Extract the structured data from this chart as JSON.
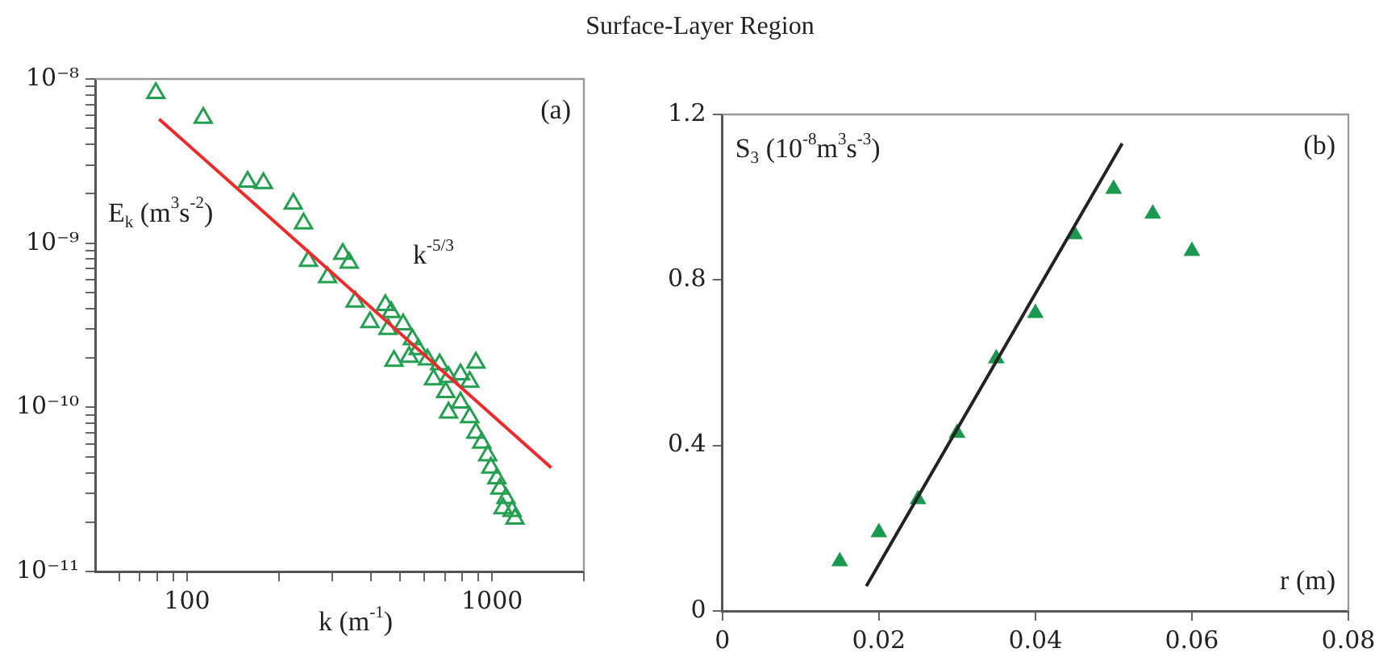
{
  "chart_data": [
    {
      "type": "scatter",
      "title": "Surface-Layer Region",
      "xlabel": "k (m$^{-1}$)",
      "ylabel": "E$_{k}$ (m$^{3}$s$^{-2}$)",
      "log": "xy",
      "marker": "triangle",
      "grid": false,
      "legend": false,
      "xlim": [
        50,
        2000
      ],
      "ylim": [
        1e-11,
        1e-08
      ],
      "xticks": [
        {
          "value": 60,
          "label": null
        },
        {
          "value": 70,
          "label": null
        },
        {
          "value": 80,
          "label": null
        },
        {
          "value": 90,
          "label": null
        },
        100,
        {
          "value": 200,
          "label": null
        },
        {
          "value": 300,
          "label": null
        },
        {
          "value": 400,
          "label": null
        },
        {
          "value": 500,
          "label": null
        },
        {
          "value": 600,
          "label": null
        },
        {
          "value": 700,
          "label": null
        },
        {
          "value": 800,
          "label": null
        },
        {
          "value": 900,
          "label": null
        },
        1000,
        {
          "value": 2000,
          "label": null
        }
      ],
      "yticks": [
        {
          "value": 1e-11,
          "label": "10⁻¹¹"
        },
        {
          "value": 2e-11,
          "label": null
        },
        {
          "value": 3e-11,
          "label": null
        },
        {
          "value": 4e-11,
          "label": null
        },
        {
          "value": 5e-11,
          "label": null
        },
        {
          "value": 6e-11,
          "label": null
        },
        {
          "value": 7e-11,
          "label": null
        },
        {
          "value": 8e-11,
          "label": null
        },
        {
          "value": 9e-11,
          "label": null
        },
        {
          "value": 1e-10,
          "label": "10⁻¹⁰"
        },
        {
          "value": 2e-10,
          "label": null
        },
        {
          "value": 3e-10,
          "label": null
        },
        {
          "value": 4e-10,
          "label": null
        },
        {
          "value": 5e-10,
          "label": null
        },
        {
          "value": 6e-10,
          "label": null
        },
        {
          "value": 7e-10,
          "label": null
        },
        {
          "value": 8e-10,
          "label": null
        },
        {
          "value": 9e-10,
          "label": null
        },
        {
          "value": 1e-09,
          "label": "10⁻⁹"
        },
        {
          "value": 2e-09,
          "label": null
        },
        {
          "value": 3e-09,
          "label": null
        },
        {
          "value": 4e-09,
          "label": null
        },
        {
          "value": 5e-09,
          "label": null
        },
        {
          "value": 6e-09,
          "label": null
        },
        {
          "value": 7e-09,
          "label": null
        },
        {
          "value": 8e-09,
          "label": null
        },
        {
          "value": 9e-09,
          "label": null
        },
        {
          "value": 1e-08,
          "label": "10⁻⁸"
        }
      ],
      "annotations": [
        "(a)",
        "k$^{-5/3}$"
      ],
      "series": [
        {
          "color": "#22a050",
          "x": [
            79,
            113,
            158,
            178,
            223,
            241,
            324,
            340,
            250,
            289,
            356,
            447,
            398,
            467,
            511,
            456,
            548,
            573,
            477,
            535,
            614,
            673,
            643,
            720,
            788,
            885,
            845,
            705,
            788,
            720,
            845,
            885,
            925,
            968,
            991,
            1037,
            1061,
            1111,
            1087,
            1163,
            1189
          ],
          "values": [
            8.2e-09,
            5.8e-09,
            2.37e-09,
            2.32e-09,
            1.74e-09,
            1.32e-09,
            8.6e-10,
            7.6e-10,
            7.8e-10,
            6.2e-10,
            4.4e-10,
            4.2e-10,
            3.3e-10,
            3.8e-10,
            3.2e-10,
            3e-10,
            2.6e-10,
            2.26e-10,
            1.92e-10,
            2.03e-10,
            1.96e-10,
            1.83e-10,
            1.48e-10,
            1.53e-10,
            1.59e-10,
            1.87e-10,
            1.43e-10,
            1.24e-10,
            1.07e-10,
            9.3e-11,
            8.7e-11,
            7e-11,
            6.1e-11,
            5.1e-11,
            4.3e-11,
            3.7e-11,
            3.2e-11,
            2.8e-11,
            2.43e-11,
            2.34e-11,
            2.1e-11
          ]
        },
        {
          "type": "line",
          "marker": "none",
          "color": "#ee2a2a",
          "x": [
            81,
            1563
          ],
          "values": [
            5.7e-09,
            4.3e-11
          ]
        }
      ]
    },
    {
      "type": "scatter",
      "xlabel": "r (m)",
      "ylabel": "S$_{3}$ (10$^{-8}$m$^{3}$s$^{-3}$)",
      "marker": "triangle",
      "grid": false,
      "legend": false,
      "xlim": [
        0,
        0.08
      ],
      "ylim": [
        0,
        1.2
      ],
      "xticks": [
        0,
        0.02,
        0.04,
        0.06,
        0.08
      ],
      "yticks": [
        0,
        0.4,
        0.8,
        1.2
      ],
      "annotations": [
        "(b)"
      ],
      "series": [
        {
          "color": "#1a9a50",
          "x": [
            0.015,
            0.02,
            0.025,
            0.03,
            0.035,
            0.04,
            0.045,
            0.05,
            0.055,
            0.06
          ],
          "values": [
            0.12,
            0.19,
            0.27,
            0.43,
            0.61,
            0.72,
            0.91,
            1.02,
            0.96,
            0.87
          ]
        },
        {
          "type": "line",
          "marker": "none",
          "color": "#222222",
          "x": [
            0.0184,
            0.0511
          ],
          "values": [
            0.06,
            1.13
          ]
        }
      ]
    }
  ]
}
